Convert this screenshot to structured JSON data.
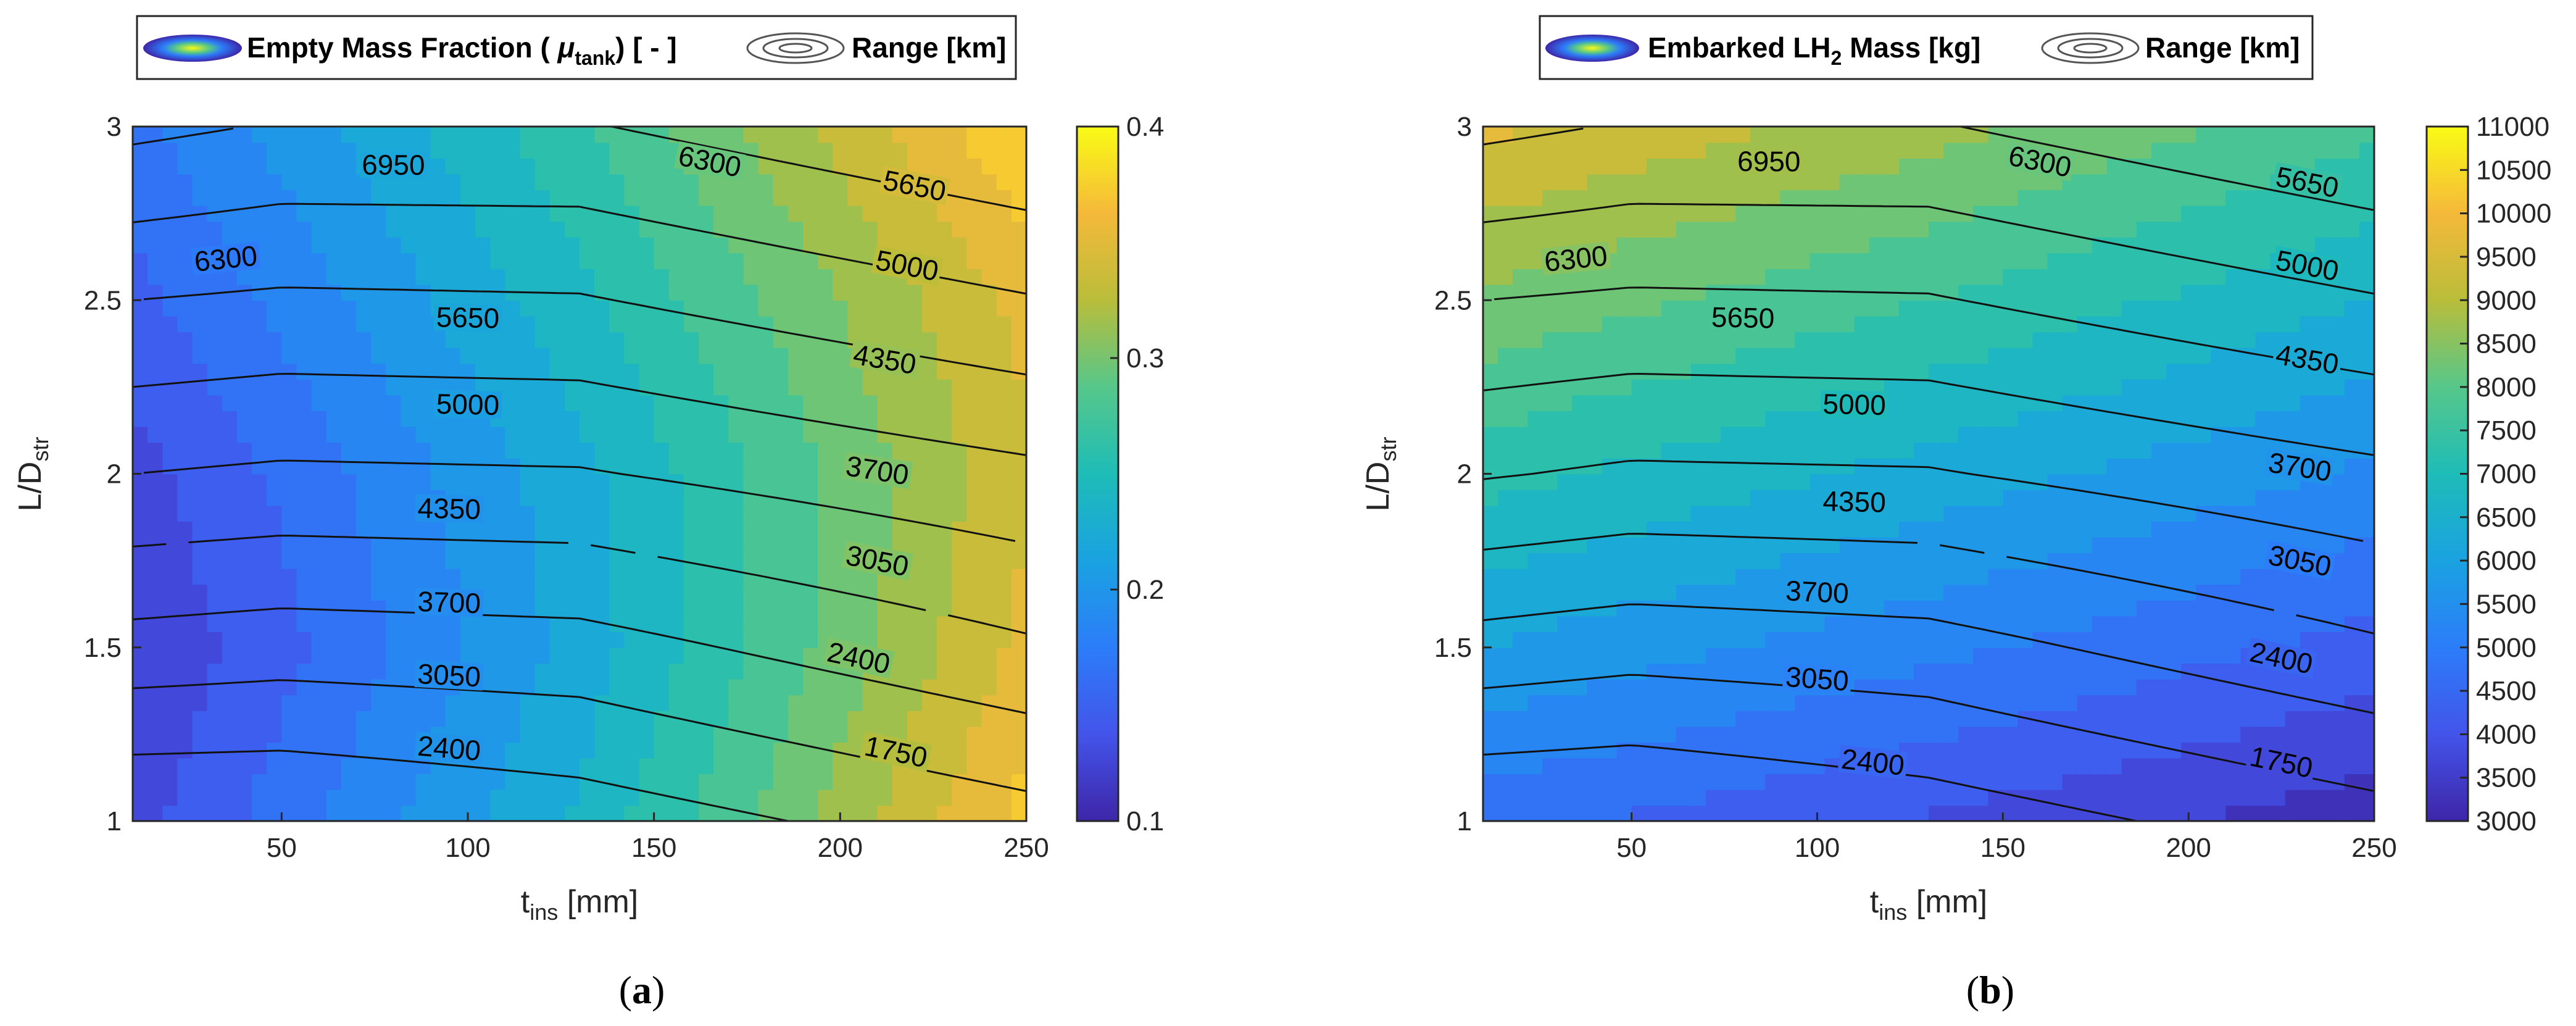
{
  "chart_data": [
    {
      "panel_id": "a",
      "type": "contour",
      "caption": "a",
      "legend": {
        "fill_label": "Empty Mass Fraction ( ",
        "fill_symbol": "μ",
        "fill_subscript": "tank",
        "fill_suffix": ") [ - ]",
        "line_label": "Range [km]"
      },
      "xlabel": "t",
      "xlabel_sub": "ins",
      "xlabel_suffix": " [mm]",
      "ylabel": "L/D",
      "ylabel_sub": "str",
      "xlim": [
        10,
        250
      ],
      "ylim": [
        1,
        3
      ],
      "xticks": [
        "50",
        "100",
        "150",
        "200",
        "250"
      ],
      "yticks": [
        "1",
        "1.5",
        "2",
        "2.5",
        "3"
      ],
      "colorbar": {
        "min": 0.1,
        "max": 0.4,
        "ticks": [
          "0.1",
          "0.2",
          "0.3",
          "0.4"
        ]
      },
      "x": [
        10,
        50,
        130,
        250
      ],
      "y": [
        1.0,
        1.5,
        2.0,
        2.5,
        3.0
      ],
      "fill_grid": [
        [
          0.13,
          0.165,
          0.235,
          0.37
        ],
        [
          0.12,
          0.15,
          0.22,
          0.35
        ],
        [
          0.13,
          0.16,
          0.225,
          0.34
        ],
        [
          0.15,
          0.18,
          0.245,
          0.35
        ],
        [
          0.17,
          0.2,
          0.265,
          0.38
        ]
      ],
      "range_grid": [
        [
          1100,
          1100,
          1400,
          2150
        ],
        [
          2800,
          2700,
          2800,
          3600
        ],
        [
          4350,
          4250,
          4300,
          4850
        ],
        [
          5650,
          5550,
          5600,
          6250
        ],
        [
          7100,
          6900,
          6900,
          7600
        ]
      ],
      "range_levels": [
        1750,
        2400,
        3050,
        3700,
        4350,
        5000,
        5650,
        6300,
        6950
      ],
      "range_labels": [
        {
          "v": "1750",
          "x": 215,
          "y": 1.2
        },
        {
          "v": "2400",
          "x": 95,
          "y": 1.21
        },
        {
          "v": "2400",
          "x": 205,
          "y": 1.47
        },
        {
          "v": "3050",
          "x": 95,
          "y": 1.42
        },
        {
          "v": "3050",
          "x": 210,
          "y": 1.75
        },
        {
          "v": "3700",
          "x": 95,
          "y": 1.63
        },
        {
          "v": "3700",
          "x": 210,
          "y": 2.01
        },
        {
          "v": "4350",
          "x": 95,
          "y": 1.9
        },
        {
          "v": "4350",
          "x": 212,
          "y": 2.33
        },
        {
          "v": "5000",
          "x": 100,
          "y": 2.2
        },
        {
          "v": "5000",
          "x": 218,
          "y": 2.6
        },
        {
          "v": "5650",
          "x": 100,
          "y": 2.45
        },
        {
          "v": "5650",
          "x": 220,
          "y": 2.83
        },
        {
          "v": "6300",
          "x": 35,
          "y": 2.62
        },
        {
          "v": "6300",
          "x": 165,
          "y": 2.9
        },
        {
          "v": "6950",
          "x": 80,
          "y": 2.89
        }
      ]
    },
    {
      "panel_id": "b",
      "type": "contour",
      "caption": "b",
      "legend": {
        "fill_label": "Embarked LH",
        "fill_subscript": "2",
        "fill_suffix": " Mass [kg]",
        "line_label": "Range [km]"
      },
      "xlabel": "t",
      "xlabel_sub": "ins",
      "xlabel_suffix": " [mm]",
      "ylabel": "L/D",
      "ylabel_sub": "str",
      "xlim": [
        10,
        250
      ],
      "ylim": [
        1,
        3
      ],
      "xticks": [
        "50",
        "100",
        "150",
        "200",
        "250"
      ],
      "yticks": [
        "1",
        "1.5",
        "2",
        "2.5",
        "3"
      ],
      "colorbar": {
        "min": 3000,
        "max": 11000,
        "ticks": [
          "3000",
          "3500",
          "4000",
          "4500",
          "5000",
          "5500",
          "6000",
          "6500",
          "7000",
          "7500",
          "8000",
          "8500",
          "9000",
          "9500",
          "10000",
          "10500",
          "11000"
        ]
      },
      "x": [
        10,
        50,
        130,
        250
      ],
      "y": [
        1.0,
        1.5,
        2.0,
        2.5,
        3.0
      ],
      "fill_grid": [
        [
          4700,
          4450,
          3950,
          3200
        ],
        [
          6000,
          5700,
          5150,
          4300
        ],
        [
          7200,
          6900,
          6300,
          5400
        ],
        [
          8400,
          8100,
          7500,
          6500
        ],
        [
          9600,
          9300,
          8700,
          7600
        ]
      ],
      "range_grid": [
        [
          1100,
          1050,
          1400,
          2150
        ],
        [
          2800,
          2650,
          2800,
          3600
        ],
        [
          4400,
          4250,
          4300,
          4850
        ],
        [
          5650,
          5550,
          5600,
          6250
        ],
        [
          7100,
          6900,
          6900,
          7600
        ]
      ],
      "range_levels": [
        1750,
        2400,
        3050,
        3700,
        4350,
        5000,
        5650,
        6300,
        6950
      ],
      "range_labels": [
        {
          "v": "1750",
          "x": 225,
          "y": 1.17
        },
        {
          "v": "2400",
          "x": 115,
          "y": 1.17
        },
        {
          "v": "2400",
          "x": 225,
          "y": 1.47
        },
        {
          "v": "3050",
          "x": 100,
          "y": 1.41
        },
        {
          "v": "3050",
          "x": 230,
          "y": 1.75
        },
        {
          "v": "3700",
          "x": 100,
          "y": 1.66
        },
        {
          "v": "3700",
          "x": 230,
          "y": 2.02
        },
        {
          "v": "4350",
          "x": 110,
          "y": 1.92
        },
        {
          "v": "4350",
          "x": 232,
          "y": 2.33
        },
        {
          "v": "5000",
          "x": 110,
          "y": 2.2
        },
        {
          "v": "5000",
          "x": 232,
          "y": 2.6
        },
        {
          "v": "5650",
          "x": 80,
          "y": 2.45
        },
        {
          "v": "5650",
          "x": 232,
          "y": 2.84
        },
        {
          "v": "6300",
          "x": 35,
          "y": 2.62
        },
        {
          "v": "6300",
          "x": 160,
          "y": 2.9
        },
        {
          "v": "6950",
          "x": 87,
          "y": 2.9
        }
      ]
    }
  ]
}
